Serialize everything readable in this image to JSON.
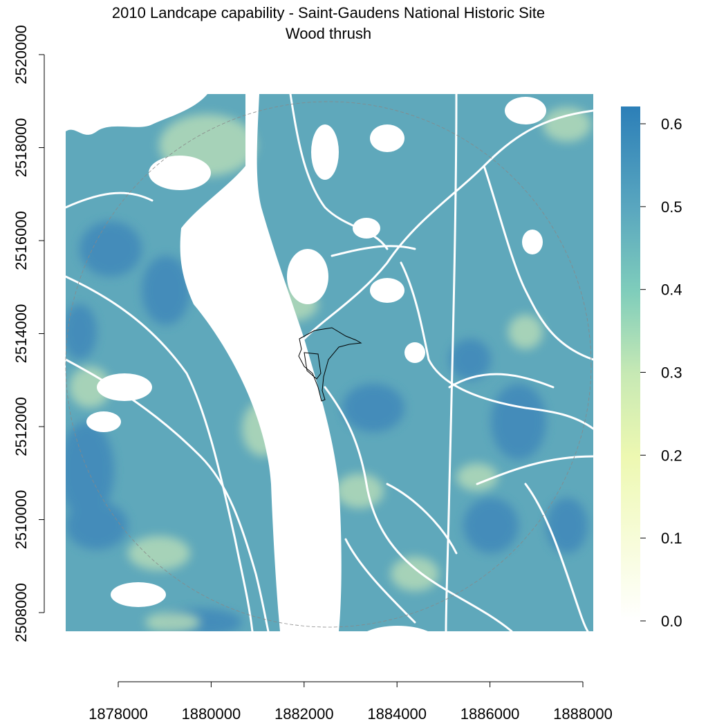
{
  "title": "2010 Landcape capability - Saint-Gaudens National Historic Site",
  "subtitle": "Wood thrush",
  "x_axis": {
    "ticks": [
      "1878000",
      "1880000",
      "1882000",
      "1884000",
      "1886000",
      "1888000"
    ]
  },
  "y_axis": {
    "ticks": [
      "2508000",
      "2510000",
      "2512000",
      "2514000",
      "2516000",
      "2518000",
      "2520000"
    ]
  },
  "legend": {
    "ticks": [
      "0.0",
      "0.1",
      "0.2",
      "0.3",
      "0.4",
      "0.5",
      "0.6"
    ],
    "colors": [
      "#ffffff",
      "#f7fcd8",
      "#edf8b1",
      "#c7e9b4",
      "#7fcdbb",
      "#5aa7bf",
      "#2c7fb8"
    ]
  },
  "map": {
    "background": "#5fa8bb",
    "dark_patch_color": "#3f88ba",
    "light_patch_color": "#b8ddb8",
    "null_color": "#ffffff",
    "boundary_color": "#000000",
    "buffer_circle_color": "#888888"
  }
}
